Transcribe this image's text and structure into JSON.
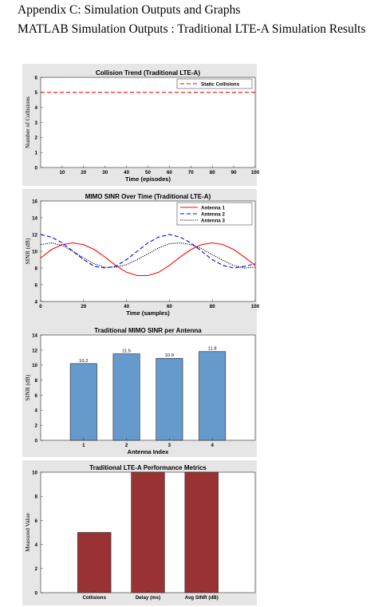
{
  "heading": "Appendix C: Simulation Outputs and Graphs",
  "subheading": "MATLAB Simulation Outputs : Traditional LTE-A Simulation Results",
  "chart_data": [
    {
      "type": "line",
      "title": "Collision Trend (Traditional LTE-A)",
      "xlabel": "Time (episodes)",
      "ylabel": "Number of Collisions",
      "xlim": [
        0,
        100
      ],
      "ylim": [
        0,
        6
      ],
      "xticks": [
        "10",
        "20",
        "30",
        "40",
        "50",
        "60",
        "70",
        "80",
        "90",
        "100"
      ],
      "yticks": [
        "0",
        "1",
        "2",
        "3",
        "4",
        "5",
        "6"
      ],
      "legend_position": "top-right",
      "series": [
        {
          "name": "Static Collisions",
          "color": "#ff0000",
          "style": "dashed",
          "x": [
            0,
            100
          ],
          "y": [
            5,
            5
          ]
        }
      ]
    },
    {
      "type": "line",
      "title": "MIMO SINR Over Time (Traditional LTE-A)",
      "xlabel": "Time (samples)",
      "ylabel": "SINR (dB)",
      "xlim": [
        0,
        100
      ],
      "ylim": [
        4,
        16
      ],
      "xticks": [
        "0",
        "20",
        "40",
        "60",
        "80",
        "100"
      ],
      "yticks": [
        "4",
        "6",
        "8",
        "10",
        "12",
        "14",
        "16"
      ],
      "legend_position": "top-right",
      "series": [
        {
          "name": "Antenna 1",
          "color": "#ff0000",
          "style": "solid",
          "x": [
            0,
            5,
            10,
            15,
            20,
            25,
            30,
            35,
            40,
            45,
            50,
            55,
            60,
            65,
            70,
            75,
            80,
            85,
            90,
            95,
            100
          ],
          "y": [
            9.2,
            10.2,
            10.8,
            11.0,
            10.8,
            10.2,
            9.3,
            8.3,
            7.5,
            7.1,
            7.1,
            7.5,
            8.3,
            9.3,
            10.2,
            10.8,
            11.0,
            10.8,
            10.2,
            9.3,
            8.3
          ]
        },
        {
          "name": "Antenna 2",
          "color": "#0000ff",
          "style": "dashed",
          "x": [
            0,
            5,
            10,
            15,
            20,
            25,
            30,
            35,
            40,
            45,
            50,
            55,
            60,
            65,
            70,
            75,
            80,
            85,
            90,
            95,
            100
          ],
          "y": [
            12.0,
            11.7,
            11.0,
            10.0,
            9.0,
            8.2,
            8.0,
            8.2,
            9.0,
            10.0,
            11.0,
            11.7,
            12.0,
            11.7,
            11.0,
            10.0,
            9.0,
            8.3,
            8.0,
            8.2,
            8.5
          ]
        },
        {
          "name": "Antenna 3",
          "color": "#000000",
          "style": "dotted",
          "x": [
            0,
            5,
            10,
            15,
            20,
            25,
            30,
            35,
            40,
            45,
            50,
            55,
            60,
            65,
            70,
            75,
            80,
            85,
            90,
            95,
            100
          ],
          "y": [
            10.8,
            11.0,
            10.7,
            10.0,
            9.2,
            8.5,
            8.1,
            8.1,
            8.4,
            9.0,
            9.7,
            10.4,
            10.9,
            11.0,
            10.8,
            10.3,
            9.6,
            8.9,
            8.3,
            8.0,
            8.1
          ]
        }
      ]
    },
    {
      "type": "bar",
      "title": "Traditional MIMO SINR per Antenna",
      "xlabel": "Antenna Index",
      "ylabel": "SINR (dB)",
      "ylim": [
        0,
        14
      ],
      "yticks": [
        "0",
        "2",
        "4",
        "6",
        "8",
        "10",
        "12",
        "14"
      ],
      "categories": [
        "1",
        "2",
        "3",
        "4"
      ],
      "values": [
        10.2,
        11.5,
        10.9,
        11.8
      ],
      "data_labels": [
        "10.2",
        "11.5",
        "10.9",
        "11.8"
      ],
      "bar_color": "#6699cc"
    },
    {
      "type": "bar",
      "title": "Traditional LTE-A Performance Metrics",
      "xlabel": "",
      "ylabel": "Measured Value",
      "ylim": [
        0,
        10
      ],
      "yticks": [
        "0",
        "2",
        "4",
        "6",
        "8",
        "10"
      ],
      "categories": [
        "Collisions",
        "Delay (ms)",
        "Avg SINR (dB)"
      ],
      "values": [
        5,
        10,
        10
      ],
      "bar_color": "#993333"
    }
  ]
}
